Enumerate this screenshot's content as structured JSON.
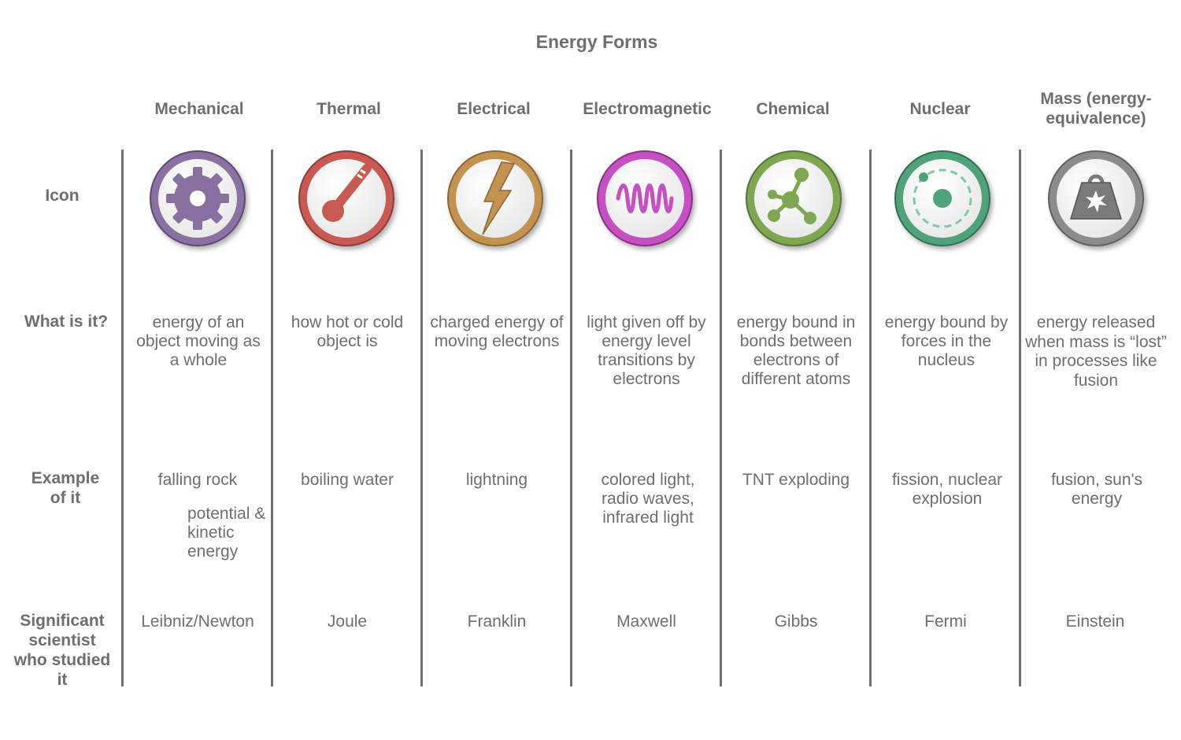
{
  "title": "Energy Forms",
  "row_labels": {
    "icon": "Icon",
    "what": "What is it?",
    "example": "Example of it",
    "scientist": "Significant scientist who studied it"
  },
  "columns": [
    {
      "header": "Mechanical",
      "icon": "gear-icon",
      "color": "#8a6fa3",
      "what": "energy of an object moving as a whole",
      "example": "falling rock",
      "example_note": "potential & kinetic energy",
      "scientist": "Leibniz/Newton"
    },
    {
      "header": "Thermal",
      "icon": "thermometer-icon",
      "color": "#c85a52",
      "what": "how hot or cold object is",
      "example": "boiling water",
      "scientist": "Joule"
    },
    {
      "header": "Electrical",
      "icon": "lightning-bolt-icon",
      "color": "#c4924f",
      "what": "charged energy of moving electrons",
      "example": "lightning",
      "scientist": "Franklin"
    },
    {
      "header": "Electromagnetic",
      "icon": "wave-icon",
      "color": "#c64fc4",
      "what": "light given off by energy level transitions by electrons",
      "example": "colored light, radio waves, infrared light",
      "scientist": "Maxwell"
    },
    {
      "header": "Chemical",
      "icon": "molecule-icon",
      "color": "#7fa74f",
      "what": "energy bound in bonds between electrons of different atoms",
      "example": "TNT exploding",
      "scientist": "Gibbs"
    },
    {
      "header": "Nuclear",
      "icon": "atom-icon",
      "color": "#4fa37a",
      "what": "energy bound by forces in the nucleus",
      "example": "fission, nuclear explosion",
      "scientist": "Fermi"
    },
    {
      "header": "Mass (energy-equivalence)",
      "icon": "weight-icon",
      "color": "#8c8c8c",
      "what": "energy released when mass is “lost” in processes like fusion",
      "example": "fusion, sun's energy",
      "scientist": "Einstein"
    }
  ]
}
